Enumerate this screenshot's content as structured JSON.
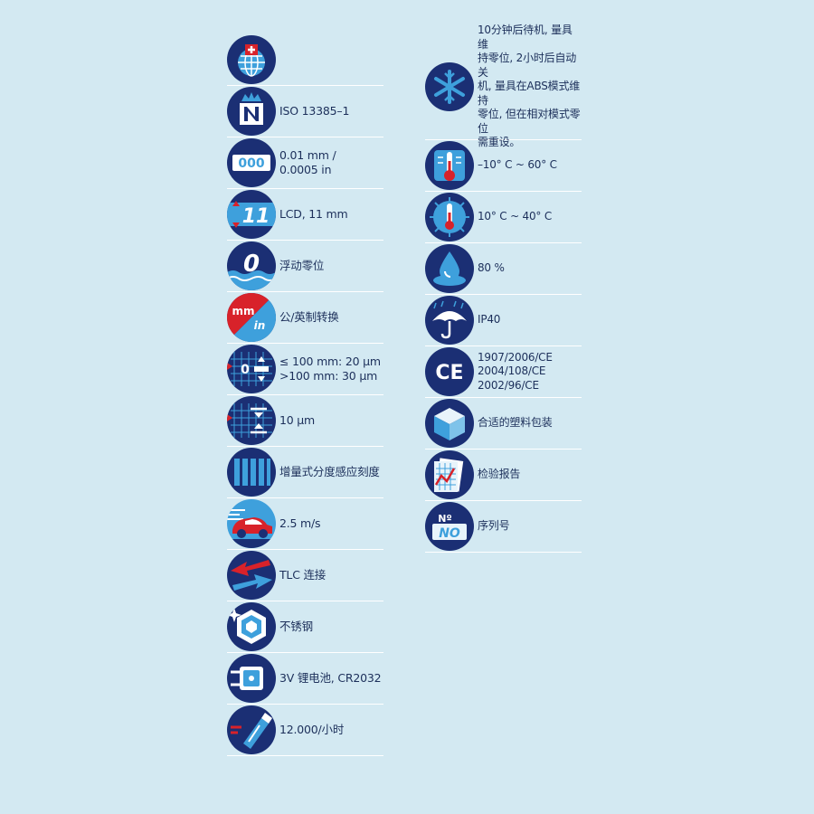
{
  "colors": {
    "background": "#d3e9f2",
    "icon_fill": "#1b2f74",
    "accent_red": "#d8222a",
    "accent_blue": "#3ea0dc"
  },
  "left_items": [
    {
      "icon": "swiss-globe-icon",
      "text": ""
    },
    {
      "icon": "norm-crown-icon",
      "text": "ISO 13385–1"
    },
    {
      "icon": "digital-resolution-icon",
      "text": "0.01 mm /\n0.0005 in"
    },
    {
      "icon": "lcd-digit-height-icon",
      "text": "LCD, 11 mm"
    },
    {
      "icon": "floating-zero-icon",
      "text": "浮动零位"
    },
    {
      "icon": "mm-in-conversion-icon",
      "text": "公/英制转换"
    },
    {
      "icon": "error-limit-icon",
      "text": "≤ 100 mm: 20 µm\n>100 mm: 30 µm"
    },
    {
      "icon": "repeatability-icon",
      "text": "10 µm"
    },
    {
      "icon": "incremental-scale-icon",
      "text": "增量式分度感应刻度"
    },
    {
      "icon": "speed-car-icon",
      "text": "2.5 m/s"
    },
    {
      "icon": "data-transfer-icon",
      "text": "TLC 连接"
    },
    {
      "icon": "stainless-steel-icon",
      "text": "不锈钢"
    },
    {
      "icon": "battery-icon",
      "text": "3V 锂电池, CR2032"
    },
    {
      "icon": "battery-life-icon",
      "text": "12.000/小时"
    }
  ],
  "right_items": [
    {
      "icon": "auto-off-snowflake-icon",
      "text": "10分钟后待机, 量具维\n持零位, 2小时后自动关\n机, 量具在ABS模式维持\n零位, 但在相对模式零位\n需重设。"
    },
    {
      "icon": "storage-temperature-icon",
      "text": "–10°  C ~ 60°  C"
    },
    {
      "icon": "operating-temperature-icon",
      "text": "10°  C ~ 40°  C"
    },
    {
      "icon": "humidity-drop-icon",
      "text": "80 %"
    },
    {
      "icon": "ip-rating-umbrella-icon",
      "text": "IP40"
    },
    {
      "icon": "ce-mark-icon",
      "text": "1907/2006/CE\n2004/108/CE\n2002/96/CE"
    },
    {
      "icon": "plastic-case-icon",
      "text": "合适的塑料包装"
    },
    {
      "icon": "inspection-report-icon",
      "text": "检验报告"
    },
    {
      "icon": "serial-number-icon",
      "text": "序列号"
    }
  ],
  "icon_glyphs": {
    "lcd_digits": "000",
    "lcd_height": "11",
    "zero": "0",
    "mm": "mm",
    "in": "in",
    "error_zero": "0",
    "ce": "CE",
    "serial_no": "Nº",
    "serial_no2": "NO"
  }
}
